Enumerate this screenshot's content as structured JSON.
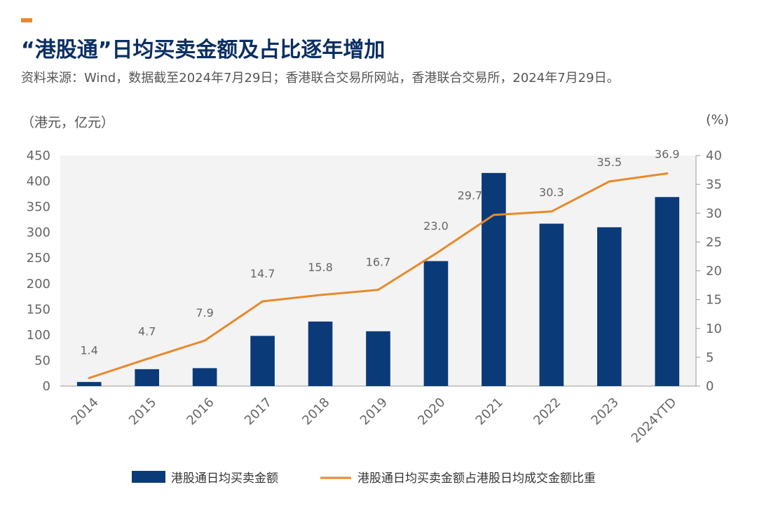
{
  "header": {
    "title": "“港股通”日均买卖金额及占比逐年增加",
    "subtitle": "资料来源：Wind，数据截至2024年7月29日；香港联合交易所网站，香港联合交易所，2024年7月29日。"
  },
  "colors": {
    "bar": "#0b3a78",
    "line": "#e8892b",
    "plot_bg": "#f3f3f3",
    "accent": "#e8892b",
    "title": "#0b2f62"
  },
  "chart_data": {
    "type": "bar",
    "categories": [
      "2014",
      "2015",
      "2016",
      "2017",
      "2018",
      "2019",
      "2020",
      "2021",
      "2022",
      "2023",
      "2024YTD"
    ],
    "left_axis_unit": "（港元，亿元）",
    "right_axis_unit": "(%)",
    "ylim_left": [
      0,
      450
    ],
    "yticks_left": [
      "0",
      "50",
      "100",
      "150",
      "200",
      "250",
      "300",
      "350",
      "400",
      "450"
    ],
    "ylim_right": [
      0,
      40
    ],
    "yticks_right": [
      "0",
      "5",
      "10",
      "15",
      "20",
      "25",
      "30",
      "35",
      "40"
    ],
    "series": [
      {
        "name": "港股通日均买卖金额",
        "type": "bar",
        "axis": "left",
        "values": [
          8,
          33,
          35,
          98,
          126,
          107,
          244,
          416,
          317,
          310,
          369
        ]
      },
      {
        "name": "港股通日均买卖金额占港股日均成交金额比重",
        "type": "line",
        "axis": "right",
        "values": [
          1.4,
          4.7,
          7.9,
          14.7,
          15.8,
          16.7,
          23.0,
          29.7,
          30.3,
          35.5,
          36.9
        ],
        "labels": [
          "1.4",
          "4.7",
          "7.9",
          "14.7",
          "15.8",
          "16.7",
          "23.0",
          "29.7",
          "30.3",
          "35.5",
          "36.9"
        ]
      }
    ],
    "grid": false,
    "legend": "bottom"
  }
}
